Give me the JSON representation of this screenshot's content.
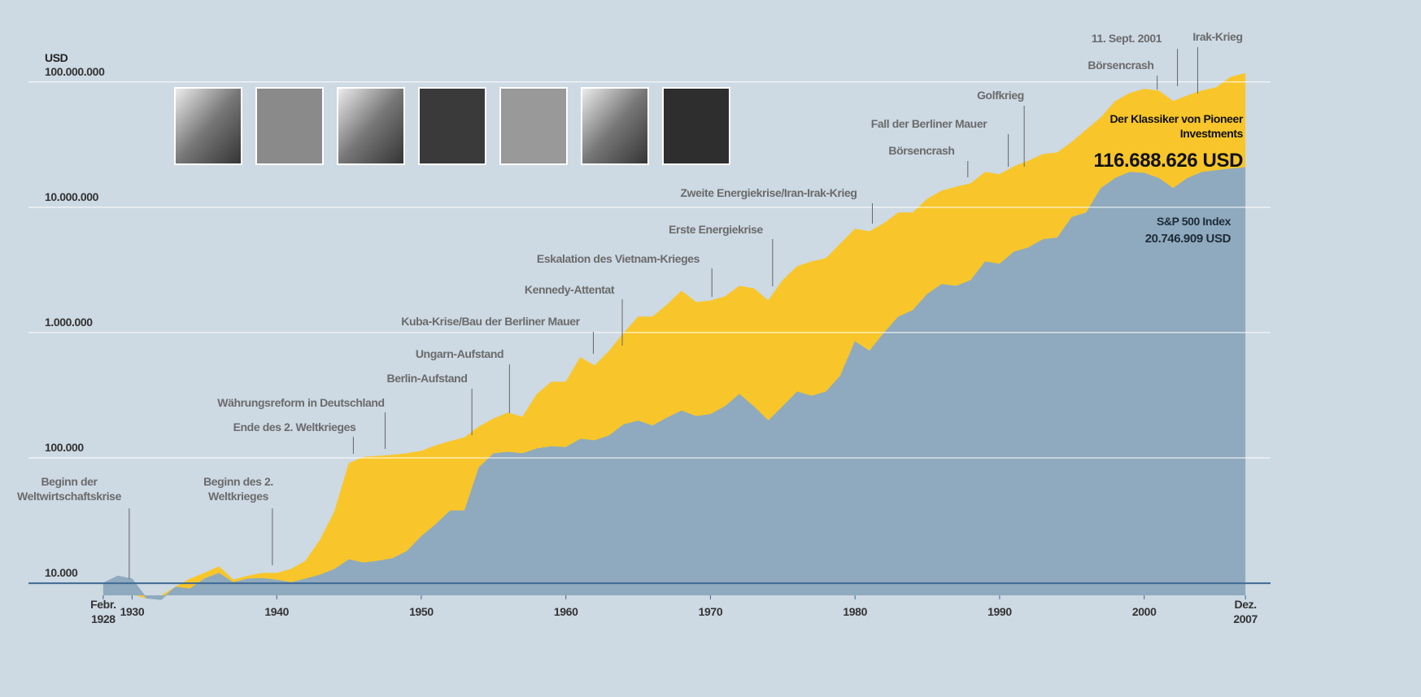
{
  "chart_data": {
    "type": "area",
    "log_scale": true,
    "grid": true,
    "y_label": "USD",
    "x": [
      1928,
      1929,
      1930,
      1931,
      1932,
      1933,
      1934,
      1935,
      1936,
      1937,
      1938,
      1939,
      1940,
      1941,
      1942,
      1943,
      1944,
      1945,
      1946,
      1947,
      1948,
      1949,
      1950,
      1951,
      1952,
      1953,
      1954,
      1955,
      1956,
      1957,
      1958,
      1959,
      1960,
      1961,
      1962,
      1963,
      1964,
      1965,
      1966,
      1967,
      1968,
      1969,
      1970,
      1971,
      1972,
      1973,
      1974,
      1975,
      1976,
      1977,
      1978,
      1979,
      1980,
      1981,
      1982,
      1983,
      1984,
      1985,
      1986,
      1987,
      1988,
      1989,
      1990,
      1991,
      1992,
      1993,
      1994,
      1995,
      1996,
      1997,
      1998,
      1999,
      2000,
      2001,
      2002,
      2003,
      2004,
      2005,
      2006,
      2007
    ],
    "xlim": [
      1927.5,
      2007.5
    ],
    "xticks": [
      {
        "value": 1928,
        "label": "Febr. 1928"
      },
      1930,
      1940,
      1950,
      1960,
      1970,
      1980,
      1990,
      2000,
      {
        "value": 2007,
        "label": "Dez. 2007"
      }
    ],
    "ylim": [
      8000,
      400000000
    ],
    "yticks": [
      {
        "value": 10000,
        "label": "10.000"
      },
      {
        "value": 100000,
        "label": "100.000"
      },
      {
        "value": 1000000,
        "label": "1.000.000"
      },
      {
        "value": 10000000,
        "label": "10.000.000"
      },
      {
        "value": 100000000,
        "label": "100.000.000"
      }
    ],
    "series": [
      {
        "name": "Der Klassiker von Pioneer Investments",
        "color": "#f8c62a",
        "values": [
          10000,
          10900,
          8200,
          7600,
          7900,
          9300,
          10800,
          12000,
          13500,
          10600,
          11400,
          12000,
          12000,
          12900,
          15000,
          22000,
          37000,
          90000,
          101000,
          103000,
          105000,
          108000,
          113000,
          125000,
          135000,
          145000,
          177000,
          205000,
          228000,
          211000,
          321000,
          402000,
          402000,
          630000,
          542000,
          710000,
          986000,
          1330000,
          1330000,
          1660000,
          2140000,
          1740000,
          1790000,
          1930000,
          2340000,
          2240000,
          1790000,
          2600000,
          3360000,
          3670000,
          3900000,
          5100000,
          6680000,
          6380000,
          7410000,
          9020000,
          9020000,
          11600000,
          13500000,
          14500000,
          15400000,
          19000000,
          18200000,
          21100000,
          23400000,
          26400000,
          27200000,
          33000000,
          41400000,
          51800000,
          69800000,
          81100000,
          87500000,
          84900000,
          69800000,
          77600000,
          84900000,
          90100000,
          109400000,
          116688626
        ],
        "value_labels": [
          null,
          null,
          null,
          null,
          null,
          null,
          null,
          null,
          null,
          null,
          null,
          null,
          null,
          null,
          null,
          null,
          null,
          null,
          null,
          null,
          null,
          null,
          null,
          null,
          null,
          null,
          null,
          null,
          null,
          null,
          null,
          null,
          null,
          null,
          null,
          null,
          null,
          null,
          null,
          null,
          null,
          null,
          null,
          null,
          null,
          null,
          null,
          null,
          null,
          null,
          null,
          null,
          null,
          null,
          null,
          null,
          null,
          null,
          null,
          null,
          null,
          null,
          null,
          null,
          null,
          null,
          null,
          null,
          null,
          null,
          null,
          null,
          null,
          null,
          null,
          null,
          null,
          null,
          null,
          "116.688.626 USD"
        ]
      },
      {
        "name": "S&P 500 Index",
        "color": "#8faabe",
        "values": [
          10000,
          11400,
          10800,
          7600,
          7400,
          9300,
          9000,
          10800,
          12000,
          10100,
          10800,
          10900,
          10600,
          10100,
          10800,
          11600,
          12900,
          15400,
          14500,
          15000,
          15700,
          17900,
          23500,
          29300,
          37800,
          37800,
          83600,
          108000,
          111000,
          108000,
          118000,
          123000,
          121000,
          141000,
          137000,
          150000,
          184000,
          197000,
          180000,
          208000,
          237000,
          214000,
          222000,
          256000,
          321000,
          256000,
          197000,
          256000,
          336000,
          311000,
          336000,
          452000,
          844000,
          710000,
          986000,
          1330000,
          1500000,
          2020000,
          2420000,
          2340000,
          2600000,
          3670000,
          3510000,
          4400000,
          4750000,
          5520000,
          5700000,
          8300000,
          9020000,
          14100000,
          17000000,
          19000000,
          18700000,
          17000000,
          14100000,
          17000000,
          19000000,
          19600000,
          20200000,
          20746909
        ],
        "value_labels": [
          null,
          null,
          null,
          null,
          null,
          null,
          null,
          null,
          null,
          null,
          null,
          null,
          null,
          null,
          null,
          null,
          null,
          null,
          null,
          null,
          null,
          null,
          null,
          null,
          null,
          null,
          null,
          null,
          null,
          null,
          null,
          null,
          null,
          null,
          null,
          null,
          null,
          null,
          null,
          null,
          null,
          null,
          null,
          null,
          null,
          null,
          null,
          null,
          null,
          null,
          null,
          null,
          null,
          null,
          null,
          null,
          null,
          null,
          null,
          null,
          null,
          null,
          null,
          null,
          null,
          null,
          null,
          null,
          null,
          null,
          null,
          null,
          null,
          null,
          null,
          null,
          null,
          null,
          null,
          "20.746.909 USD"
        ]
      }
    ],
    "annotations": [
      {
        "text": "Beginn der Weltwirtschaftskrise",
        "x": 1929.8
      },
      {
        "text": "Beginn des 2. Weltkrieges",
        "x": 1939.7
      },
      {
        "text": "Ende des 2. Weltkrieges",
        "x": 1945.3
      },
      {
        "text": "Währungsreform in Deutschland",
        "x": 1947.5
      },
      {
        "text": "Berlin-Aufstand",
        "x": 1953.5
      },
      {
        "text": "Ungarn-Aufstand",
        "x": 1956.1
      },
      {
        "text": "Kuba-Krise/Bau der Berliner Mauer",
        "x": 1961.9
      },
      {
        "text": "Kennedy-Attentat",
        "x": 1963.9
      },
      {
        "text": "Eskalation des Vietnam-Krieges",
        "x": 1970.1
      },
      {
        "text": "Erste Energiekrise",
        "x": 1974.3
      },
      {
        "text": "Zweite Energiekrise/Iran-Irak-Krieg",
        "x": 1981.2
      },
      {
        "text": "Börsencrash",
        "x": 1987.8
      },
      {
        "text": "Fall der Berliner Mauer",
        "x": 1990.6
      },
      {
        "text": "Golfkrieg",
        "x": 1991.7
      },
      {
        "text": "Börsencrash",
        "x": 2000.9
      },
      {
        "text": "11. Sept. 2001",
        "x": 2002.3
      },
      {
        "text": "Irak-Krieg",
        "x": 2003.7
      }
    ]
  }
}
